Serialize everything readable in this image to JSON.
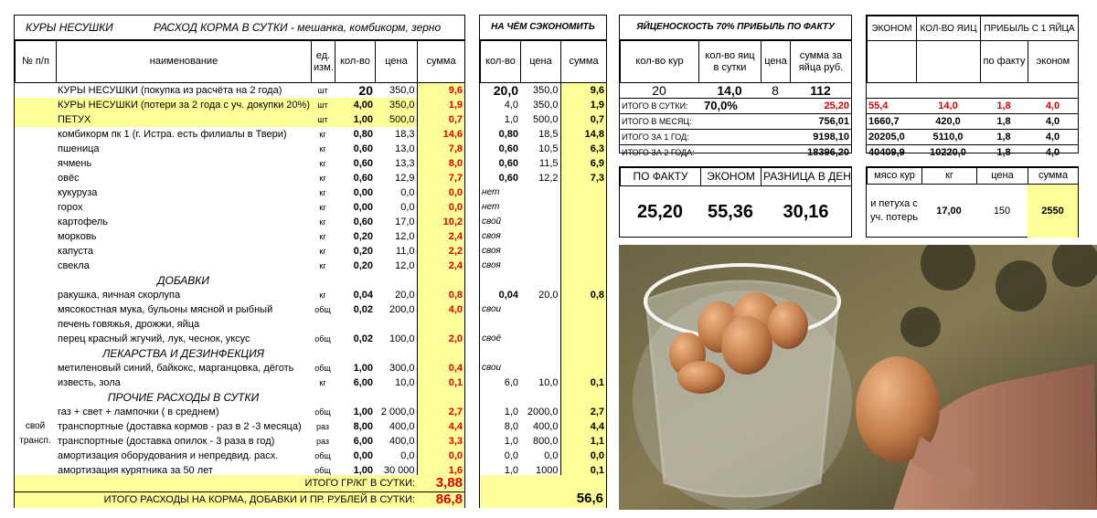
{
  "main": {
    "title_left": "КУРЫ  НЕСУШКИ",
    "title_right": "РАСХОД  КОРМА  В  СУТКИ -  мешанка, комбикорм, зерно",
    "headers": {
      "num": "№ п/п",
      "name": "наименование",
      "unit": "ед. изм.",
      "qty": "кол-во",
      "price": "цена",
      "sum": "сумма"
    },
    "rows": [
      {
        "side": "",
        "name": "КУРЫ НЕСУШКИ  (покупка из расчёта на 2 года)",
        "unit": "шт",
        "qty": "20",
        "price": "350,0",
        "sum": "9,6",
        "type": "big"
      },
      {
        "side": "",
        "name": "КУРЫ НЕСУШКИ  (потери за 2 года с уч. докупки 20%)",
        "unit": "шт",
        "qty": "4,00",
        "price": "350,0",
        "sum": "1,9",
        "type": "hl"
      },
      {
        "side": "",
        "name": "ПЕТУХ",
        "unit": "шт",
        "qty": "1,00",
        "price": "500,0",
        "sum": "0,7",
        "type": "hl"
      },
      {
        "side": "",
        "name": "комбикорм пк 1 (г. Истра. есть филиалы в Твери)",
        "unit": "кг",
        "qty": "0,80",
        "price": "18,3",
        "sum": "14,6"
      },
      {
        "side": "",
        "name": "пшеница",
        "unit": "кг",
        "qty": "0,60",
        "price": "13,0",
        "sum": "7,8"
      },
      {
        "side": "",
        "name": "ячмень",
        "unit": "кг",
        "qty": "0,60",
        "price": "13,3",
        "sum": "8,0"
      },
      {
        "side": "",
        "name": "овёс",
        "unit": "кг",
        "qty": "0,60",
        "price": "12,9",
        "sum": "7,7"
      },
      {
        "side": "",
        "name": "кукуруза",
        "unit": "кг",
        "qty": "0,00",
        "price": "0,0",
        "sum": "0,0"
      },
      {
        "side": "",
        "name": "горох",
        "unit": "кг",
        "qty": "0,00",
        "price": "0,0",
        "sum": "0,0"
      },
      {
        "side": "",
        "name": "картофель",
        "unit": "кг",
        "qty": "0,60",
        "price": "17,0",
        "sum": "10,2"
      },
      {
        "side": "",
        "name": "морковь",
        "unit": "кг",
        "qty": "0,20",
        "price": "12,0",
        "sum": "2,4"
      },
      {
        "side": "",
        "name": "капуста",
        "unit": "кг",
        "qty": "0,20",
        "price": "11,0",
        "sum": "2,2"
      },
      {
        "side": "",
        "name": "свекла",
        "unit": "кг",
        "qty": "0,20",
        "price": "12,0",
        "sum": "2,4"
      },
      {
        "side": "",
        "name": "ДОБАВКИ",
        "unit": "",
        "qty": "",
        "price": "",
        "sum": "",
        "type": "section"
      },
      {
        "side": "",
        "name": "ракушка, яичная скорлупа",
        "unit": "кг",
        "qty": "0,04",
        "price": "20,0",
        "sum": "0,8"
      },
      {
        "side": "",
        "name": "мясокостная мука, бульоны мясной и рыбный",
        "unit": "общ",
        "qty": "0,02",
        "price": "200,0",
        "sum": "4,0"
      },
      {
        "side": "",
        "name": "печень говяжья, дрожжи, яйца",
        "unit": "",
        "qty": "",
        "price": "",
        "sum": ""
      },
      {
        "side": "",
        "name": "перец красный жгучий, лук, чеснок, уксус",
        "unit": "общ",
        "qty": "0,02",
        "price": "100,0",
        "sum": "2,0"
      },
      {
        "side": "",
        "name": "ЛЕКАРСТВА И ДЕЗИНФЕКЦИЯ",
        "unit": "",
        "qty": "",
        "price": "",
        "sum": "",
        "type": "section"
      },
      {
        "side": "",
        "name": "метиленовый синий, байкокс, марганцовка, дёготь",
        "unit": "общ",
        "qty": "1,00",
        "price": "300,0",
        "sum": "0,4"
      },
      {
        "side": "",
        "name": "известь, зола",
        "unit": "кг",
        "qty": "6,00",
        "price": "10,0",
        "sum": "0,1"
      },
      {
        "side": "",
        "name": "ПРОЧИЕ РАСХОДЫ В СУТКИ",
        "unit": "",
        "qty": "",
        "price": "",
        "sum": "",
        "type": "section"
      },
      {
        "side": "",
        "name": "газ + свет + лампочки ( в среднем)",
        "unit": "общ",
        "qty": "1,00",
        "price": "2 000,0",
        "sum": "2,7"
      },
      {
        "side": "свой",
        "name": "транспортные (доставка кормов - раз в 2 -3 месяца)",
        "unit": "раз",
        "qty": "8,00",
        "price": "400,0",
        "sum": "4,4"
      },
      {
        "side": "трансп.",
        "name": "транспортные (доставка опилок - 3 раза в год)",
        "unit": "раз",
        "qty": "6,00",
        "price": "400,0",
        "sum": "3,3"
      },
      {
        "side": "",
        "name": "амортизация оборудования и непредвид. расх.",
        "unit": "общ",
        "qty": "0,00",
        "price": "0,0",
        "sum": "0,0"
      },
      {
        "side": "",
        "name": "амортизация курятника за 50 лет",
        "unit": "общ",
        "qty": "1,00",
        "price": "30 000",
        "sum": "1,6"
      }
    ],
    "total1_label": "ИТОГО ГР/КГ В СУТКИ:",
    "total1_value": "3,88",
    "total2_label": "ИТОГО РАСХОДЫ НА КОРМА, ДОБАВКИ И ПР. РУБЛЕЙ В СУТКИ:",
    "total2_value": "86,8"
  },
  "save": {
    "title": "НА  ЧЁМ  СЭКОНОМИТЬ",
    "headers": {
      "qty": "кол-во",
      "price": "цена",
      "sum": "сумма"
    },
    "rows": [
      {
        "qty": "20,0",
        "price": "350,0",
        "sum": "9,6",
        "type": "big"
      },
      {
        "qty": "4,0",
        "price": "350,0",
        "sum": "1,9"
      },
      {
        "qty": "1,0",
        "price": "500,0",
        "sum": "0,7"
      },
      {
        "qty": "0,80",
        "price": "18,5",
        "sum": "14,8"
      },
      {
        "qty": "0,60",
        "price": "10,5",
        "sum": "6,3"
      },
      {
        "qty": "0,60",
        "price": "11,5",
        "sum": "6,9"
      },
      {
        "qty": "0,60",
        "price": "12,2",
        "sum": "7,3"
      },
      {
        "qty": "нет",
        "price": "",
        "sum": "",
        "type": "note"
      },
      {
        "qty": "нет",
        "price": "",
        "sum": "",
        "type": "note"
      },
      {
        "qty": "свой",
        "price": "",
        "sum": "",
        "type": "note"
      },
      {
        "qty": "своя",
        "price": "",
        "sum": "",
        "type": "note"
      },
      {
        "qty": "своя",
        "price": "",
        "sum": "",
        "type": "note"
      },
      {
        "qty": "своя",
        "price": "",
        "sum": "",
        "type": "note"
      },
      {
        "qty": "",
        "price": "",
        "sum": ""
      },
      {
        "qty": "0,04",
        "price": "20,0",
        "sum": "0,8",
        "type": "boldqty"
      },
      {
        "qty": "свои",
        "price": "",
        "sum": "",
        "type": "note"
      },
      {
        "qty": "",
        "price": "",
        "sum": ""
      },
      {
        "qty": "своё",
        "price": "",
        "sum": "",
        "type": "note"
      },
      {
        "qty": "",
        "price": "",
        "sum": ""
      },
      {
        "qty": "свои",
        "price": "",
        "sum": "",
        "type": "note"
      },
      {
        "qty": "6,0",
        "price": "10,0",
        "sum": "0,1"
      },
      {
        "qty": "",
        "price": "",
        "sum": ""
      },
      {
        "qty": "1,0",
        "price": "2000,0",
        "sum": "2,7"
      },
      {
        "qty": "8,0",
        "price": "400,0",
        "sum": "4,4"
      },
      {
        "qty": "1,0",
        "price": "800,0",
        "sum": "1,1"
      },
      {
        "qty": "0,0",
        "price": "0,0",
        "sum": "0,0"
      },
      {
        "qty": "1,0",
        "price": "1000",
        "sum": "0,1"
      }
    ],
    "total": "56,6"
  },
  "yield": {
    "title": "ЯЙЦЕНОСКОСТЬ 70% ПРИБЫЛЬ ПО ФАКТУ",
    "headers": {
      "hens": "кол-во кур",
      "eggs": "кол-во яиц в сутки",
      "price": "цена",
      "sum": "сумма за яйца руб."
    },
    "main": {
      "hens": "20",
      "eggs": "14,0",
      "price": "8",
      "sum": "112"
    },
    "rows": [
      {
        "label": "ИТОГО  В  СУТКИ:",
        "mid": "70,0%",
        "value": "25,20"
      },
      {
        "label": "ИТОГО  В  МЕСЯЦ:",
        "mid": "",
        "value": "756,01"
      },
      {
        "label": "ИТОГО  ЗА 1  ГОД:",
        "mid": "",
        "value": "9198,10"
      },
      {
        "label": "ИТОГО  ЗА 2 ГОДА:",
        "mid": "",
        "value": "18396,20"
      }
    ]
  },
  "econ": {
    "headers": {
      "econ": "ЭКОНОМ",
      "eggs": "КОЛ-ВО ЯИЦ",
      "profit": "ПРИБЫЛЬ С 1 ЯЙЦА",
      "fact": "по факту",
      "econ2": "эконом"
    },
    "rows": [
      {
        "econ": "55,4",
        "eggs": "14,0",
        "fact": "1,8",
        "econ2": "4,0"
      },
      {
        "econ": "1660,7",
        "eggs": "420,0",
        "fact": "1,8",
        "econ2": "4,0"
      },
      {
        "econ": "20205,0",
        "eggs": "5110,0",
        "fact": "1,8",
        "econ2": "4,0"
      },
      {
        "econ": "40409,9",
        "eggs": "10220,0",
        "fact": "1,8",
        "econ2": "4,0"
      }
    ]
  },
  "compare": {
    "headers": [
      "ПО ФАКТУ",
      "ЭКОНОМ",
      "РАЗНИЦА В ДЕНЬ"
    ],
    "values": [
      "25,20",
      "55,36",
      "30,16"
    ]
  },
  "meat": {
    "headers": {
      "name": "мясо кур",
      "kg": "кг",
      "price": "цена",
      "sum": "сумма"
    },
    "name": "и петуха с уч. потерь",
    "kg": "17,00",
    "price": "150",
    "sum": "2550"
  },
  "photo": {
    "icon": "egg-bucket-photo"
  }
}
